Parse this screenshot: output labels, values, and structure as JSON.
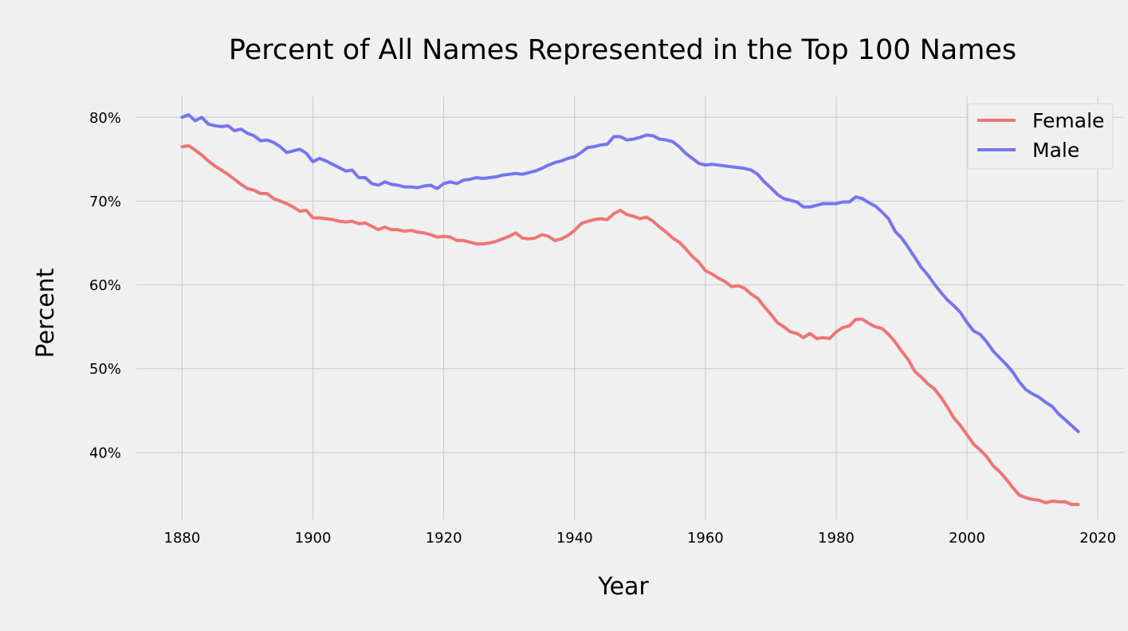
{
  "chart_data": {
    "type": "line",
    "title": "Percent of All Names Represented in the Top 100 Names",
    "xlabel": "Year",
    "ylabel": "Percent",
    "xlim": [
      1873,
      2024
    ],
    "ylim": [
      32,
      82.5
    ],
    "xticks": [
      1880,
      1900,
      1920,
      1940,
      1960,
      1980,
      2000,
      2020
    ],
    "yticks": [
      40,
      50,
      60,
      70,
      80
    ],
    "ytick_suffix": "%",
    "grid": true,
    "legend": {
      "placement": "top-right"
    },
    "series": [
      {
        "name": "Female",
        "color": "#ef7575",
        "points": [
          [
            1880,
            76.5
          ],
          [
            1881,
            76.6
          ],
          [
            1882,
            76.1
          ],
          [
            1883,
            75.5
          ],
          [
            1884,
            74.8
          ],
          [
            1885,
            74.2
          ],
          [
            1886,
            73.7
          ],
          [
            1887,
            73.2
          ],
          [
            1888,
            72.6
          ],
          [
            1889,
            72.0
          ],
          [
            1890,
            71.5
          ],
          [
            1891,
            71.3
          ],
          [
            1892,
            70.9
          ],
          [
            1893,
            70.9
          ],
          [
            1894,
            70.3
          ],
          [
            1895,
            70.0
          ],
          [
            1896,
            69.7
          ],
          [
            1897,
            69.3
          ],
          [
            1898,
            68.8
          ],
          [
            1899,
            68.9
          ],
          [
            1900,
            68.0
          ],
          [
            1901,
            68.0
          ],
          [
            1902,
            67.9
          ],
          [
            1903,
            67.8
          ],
          [
            1904,
            67.6
          ],
          [
            1905,
            67.5
          ],
          [
            1906,
            67.6
          ],
          [
            1907,
            67.3
          ],
          [
            1908,
            67.4
          ],
          [
            1909,
            67.0
          ],
          [
            1910,
            66.6
          ],
          [
            1911,
            66.9
          ],
          [
            1912,
            66.6
          ],
          [
            1913,
            66.6
          ],
          [
            1914,
            66.4
          ],
          [
            1915,
            66.5
          ],
          [
            1916,
            66.3
          ],
          [
            1917,
            66.2
          ],
          [
            1918,
            66.0
          ],
          [
            1919,
            65.7
          ],
          [
            1920,
            65.8
          ],
          [
            1921,
            65.7
          ],
          [
            1922,
            65.3
          ],
          [
            1923,
            65.3
          ],
          [
            1924,
            65.1
          ],
          [
            1925,
            64.9
          ],
          [
            1926,
            64.9
          ],
          [
            1927,
            65.0
          ],
          [
            1928,
            65.2
          ],
          [
            1929,
            65.5
          ],
          [
            1930,
            65.8
          ],
          [
            1931,
            66.2
          ],
          [
            1932,
            65.6
          ],
          [
            1933,
            65.5
          ],
          [
            1934,
            65.6
          ],
          [
            1935,
            66.0
          ],
          [
            1936,
            65.8
          ],
          [
            1937,
            65.3
          ],
          [
            1938,
            65.5
          ],
          [
            1939,
            65.9
          ],
          [
            1940,
            66.5
          ],
          [
            1941,
            67.3
          ],
          [
            1942,
            67.6
          ],
          [
            1943,
            67.8
          ],
          [
            1944,
            67.9
          ],
          [
            1945,
            67.8
          ],
          [
            1946,
            68.5
          ],
          [
            1947,
            68.9
          ],
          [
            1948,
            68.4
          ],
          [
            1949,
            68.2
          ],
          [
            1950,
            67.9
          ],
          [
            1951,
            68.1
          ],
          [
            1952,
            67.6
          ],
          [
            1953,
            66.9
          ],
          [
            1954,
            66.3
          ],
          [
            1955,
            65.6
          ],
          [
            1956,
            65.1
          ],
          [
            1957,
            64.3
          ],
          [
            1958,
            63.4
          ],
          [
            1959,
            62.7
          ],
          [
            1960,
            61.7
          ],
          [
            1961,
            61.3
          ],
          [
            1962,
            60.8
          ],
          [
            1963,
            60.4
          ],
          [
            1964,
            59.8
          ],
          [
            1965,
            59.9
          ],
          [
            1966,
            59.6
          ],
          [
            1967,
            58.9
          ],
          [
            1968,
            58.4
          ],
          [
            1969,
            57.4
          ],
          [
            1970,
            56.5
          ],
          [
            1971,
            55.5
          ],
          [
            1972,
            55.0
          ],
          [
            1973,
            54.4
          ],
          [
            1974,
            54.2
          ],
          [
            1975,
            53.7
          ],
          [
            1976,
            54.2
          ],
          [
            1977,
            53.6
          ],
          [
            1978,
            53.7
          ],
          [
            1979,
            53.6
          ],
          [
            1980,
            54.4
          ],
          [
            1981,
            54.9
          ],
          [
            1982,
            55.1
          ],
          [
            1983,
            55.9
          ],
          [
            1984,
            55.9
          ],
          [
            1985,
            55.4
          ],
          [
            1986,
            55.0
          ],
          [
            1987,
            54.8
          ],
          [
            1988,
            54.1
          ],
          [
            1989,
            53.2
          ],
          [
            1990,
            52.1
          ],
          [
            1991,
            51.1
          ],
          [
            1992,
            49.7
          ],
          [
            1993,
            49.0
          ],
          [
            1994,
            48.2
          ],
          [
            1995,
            47.6
          ],
          [
            1996,
            46.6
          ],
          [
            1997,
            45.4
          ],
          [
            1998,
            44.1
          ],
          [
            1999,
            43.2
          ],
          [
            2000,
            42.1
          ],
          [
            2001,
            41.0
          ],
          [
            2002,
            40.3
          ],
          [
            2003,
            39.5
          ],
          [
            2004,
            38.4
          ],
          [
            2005,
            37.7
          ],
          [
            2006,
            36.8
          ],
          [
            2007,
            35.8
          ],
          [
            2008,
            34.9
          ],
          [
            2009,
            34.6
          ],
          [
            2010,
            34.4
          ],
          [
            2011,
            34.3
          ],
          [
            2012,
            34.0
          ],
          [
            2013,
            34.2
          ],
          [
            2014,
            34.1
          ],
          [
            2015,
            34.1
          ],
          [
            2016,
            33.8
          ],
          [
            2017,
            33.8
          ]
        ]
      },
      {
        "name": "Male",
        "color": "#7575ef",
        "points": [
          [
            1880,
            80.0
          ],
          [
            1881,
            80.3
          ],
          [
            1882,
            79.6
          ],
          [
            1883,
            80.0
          ],
          [
            1884,
            79.2
          ],
          [
            1885,
            79.0
          ],
          [
            1886,
            78.9
          ],
          [
            1887,
            79.0
          ],
          [
            1888,
            78.4
          ],
          [
            1889,
            78.6
          ],
          [
            1890,
            78.1
          ],
          [
            1891,
            77.8
          ],
          [
            1892,
            77.2
          ],
          [
            1893,
            77.3
          ],
          [
            1894,
            77.0
          ],
          [
            1895,
            76.5
          ],
          [
            1896,
            75.8
          ],
          [
            1897,
            76.0
          ],
          [
            1898,
            76.2
          ],
          [
            1899,
            75.7
          ],
          [
            1900,
            74.7
          ],
          [
            1901,
            75.1
          ],
          [
            1902,
            74.8
          ],
          [
            1903,
            74.4
          ],
          [
            1904,
            74.0
          ],
          [
            1905,
            73.6
          ],
          [
            1906,
            73.7
          ],
          [
            1907,
            72.8
          ],
          [
            1908,
            72.8
          ],
          [
            1909,
            72.1
          ],
          [
            1910,
            71.9
          ],
          [
            1911,
            72.3
          ],
          [
            1912,
            72.0
          ],
          [
            1913,
            71.9
          ],
          [
            1914,
            71.7
          ],
          [
            1915,
            71.7
          ],
          [
            1916,
            71.6
          ],
          [
            1917,
            71.8
          ],
          [
            1918,
            71.9
          ],
          [
            1919,
            71.5
          ],
          [
            1920,
            72.1
          ],
          [
            1921,
            72.3
          ],
          [
            1922,
            72.1
          ],
          [
            1923,
            72.5
          ],
          [
            1924,
            72.6
          ],
          [
            1925,
            72.8
          ],
          [
            1926,
            72.7
          ],
          [
            1927,
            72.8
          ],
          [
            1928,
            72.9
          ],
          [
            1929,
            73.1
          ],
          [
            1930,
            73.2
          ],
          [
            1931,
            73.3
          ],
          [
            1932,
            73.2
          ],
          [
            1933,
            73.4
          ],
          [
            1934,
            73.6
          ],
          [
            1935,
            73.9
          ],
          [
            1936,
            74.3
          ],
          [
            1937,
            74.6
          ],
          [
            1938,
            74.8
          ],
          [
            1939,
            75.1
          ],
          [
            1940,
            75.3
          ],
          [
            1941,
            75.8
          ],
          [
            1942,
            76.4
          ],
          [
            1943,
            76.5
          ],
          [
            1944,
            76.7
          ],
          [
            1945,
            76.8
          ],
          [
            1946,
            77.7
          ],
          [
            1947,
            77.7
          ],
          [
            1948,
            77.3
          ],
          [
            1949,
            77.4
          ],
          [
            1950,
            77.6
          ],
          [
            1951,
            77.9
          ],
          [
            1952,
            77.8
          ],
          [
            1953,
            77.4
          ],
          [
            1954,
            77.3
          ],
          [
            1955,
            77.1
          ],
          [
            1956,
            76.5
          ],
          [
            1957,
            75.7
          ],
          [
            1958,
            75.1
          ],
          [
            1959,
            74.5
          ],
          [
            1960,
            74.3
          ],
          [
            1961,
            74.4
          ],
          [
            1962,
            74.3
          ],
          [
            1963,
            74.2
          ],
          [
            1964,
            74.1
          ],
          [
            1965,
            74.0
          ],
          [
            1966,
            73.9
          ],
          [
            1967,
            73.7
          ],
          [
            1968,
            73.2
          ],
          [
            1969,
            72.3
          ],
          [
            1970,
            71.6
          ],
          [
            1971,
            70.8
          ],
          [
            1972,
            70.3
          ],
          [
            1973,
            70.1
          ],
          [
            1974,
            69.9
          ],
          [
            1975,
            69.3
          ],
          [
            1976,
            69.3
          ],
          [
            1977,
            69.5
          ],
          [
            1978,
            69.7
          ],
          [
            1979,
            69.7
          ],
          [
            1980,
            69.7
          ],
          [
            1981,
            69.9
          ],
          [
            1982,
            69.9
          ],
          [
            1983,
            70.5
          ],
          [
            1984,
            70.3
          ],
          [
            1985,
            69.8
          ],
          [
            1986,
            69.4
          ],
          [
            1987,
            68.7
          ],
          [
            1988,
            67.9
          ],
          [
            1989,
            66.4
          ],
          [
            1990,
            65.6
          ],
          [
            1991,
            64.5
          ],
          [
            1992,
            63.3
          ],
          [
            1993,
            62.1
          ],
          [
            1994,
            61.2
          ],
          [
            1995,
            60.1
          ],
          [
            1996,
            59.1
          ],
          [
            1997,
            58.2
          ],
          [
            1998,
            57.5
          ],
          [
            1999,
            56.7
          ],
          [
            2000,
            55.5
          ],
          [
            2001,
            54.5
          ],
          [
            2002,
            54.1
          ],
          [
            2003,
            53.2
          ],
          [
            2004,
            52.1
          ],
          [
            2005,
            51.3
          ],
          [
            2006,
            50.5
          ],
          [
            2007,
            49.6
          ],
          [
            2008,
            48.4
          ],
          [
            2009,
            47.5
          ],
          [
            2010,
            47.0
          ],
          [
            2011,
            46.6
          ],
          [
            2012,
            46.0
          ],
          [
            2013,
            45.5
          ],
          [
            2014,
            44.6
          ],
          [
            2015,
            43.9
          ],
          [
            2016,
            43.2
          ],
          [
            2017,
            42.5
          ]
        ]
      }
    ]
  }
}
